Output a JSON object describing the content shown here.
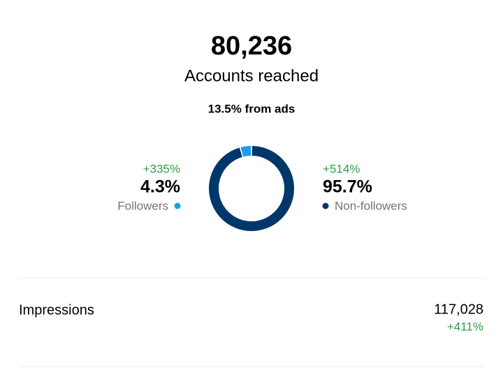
{
  "header": {
    "value": "80,236",
    "label": "Accounts reached",
    "subtitle": "13.5% from ads"
  },
  "chart_data": {
    "type": "donut",
    "categories": [
      "Followers",
      "Non-followers"
    ],
    "values": [
      4.3,
      95.7
    ],
    "value_labels": [
      "4.3%",
      "95.7%"
    ],
    "changes": [
      "+335%",
      "+514%"
    ],
    "colors": [
      "#1e9cf0",
      "#00376b"
    ]
  },
  "metrics": [
    {
      "label": "Impressions",
      "value": "117,028",
      "change": "+411%"
    }
  ]
}
